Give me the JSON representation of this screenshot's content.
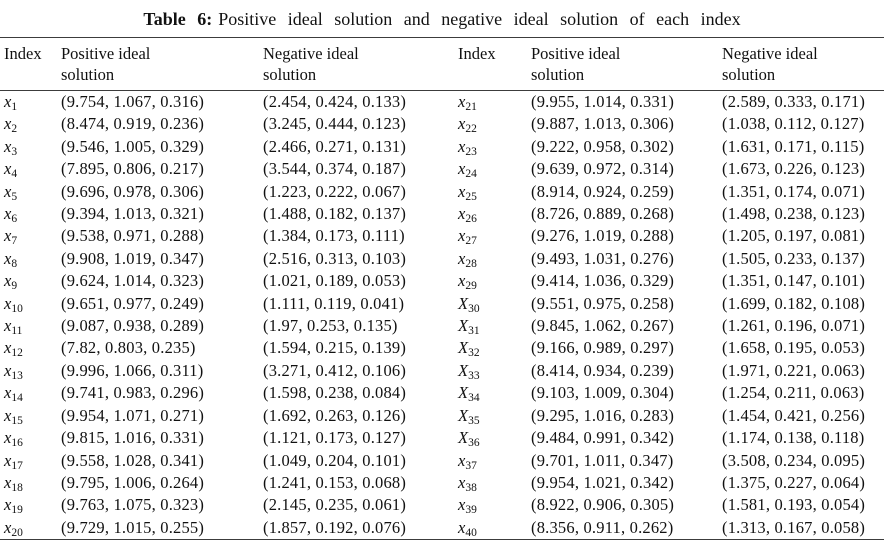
{
  "table": {
    "title_label": "Table 6:",
    "title_text": "Positive ideal solution and negative ideal solution of each index",
    "headers": [
      "Index",
      "Positive ideal solution",
      "Negative ideal solution",
      "Index",
      "Positive ideal solution",
      "Negative ideal solution"
    ]
  },
  "rows": [
    {
      "left": {
        "index_base": "x",
        "index_sub": "1",
        "positive": "(9.754, 1.067, 0.316)",
        "negative": "(2.454, 0.424, 0.133)"
      },
      "right": {
        "index_base": "x",
        "index_sub": "21",
        "positive": "(9.955, 1.014, 0.331)",
        "negative": "(2.589, 0.333, 0.171)"
      }
    },
    {
      "left": {
        "index_base": "x",
        "index_sub": "2",
        "positive": "(8.474, 0.919, 0.236)",
        "negative": "(3.245, 0.444, 0.123)"
      },
      "right": {
        "index_base": "x",
        "index_sub": "22",
        "positive": "(9.887, 1.013, 0.306)",
        "negative": "(1.038, 0.112, 0.127)"
      }
    },
    {
      "left": {
        "index_base": "x",
        "index_sub": "3",
        "positive": "(9.546, 1.005, 0.329)",
        "negative": "(2.466, 0.271, 0.131)"
      },
      "right": {
        "index_base": "x",
        "index_sub": "23",
        "positive": "(9.222, 0.958, 0.302)",
        "negative": "(1.631, 0.171, 0.115)"
      }
    },
    {
      "left": {
        "index_base": "x",
        "index_sub": "4",
        "positive": "(7.895, 0.806, 0.217)",
        "negative": "(3.544, 0.374, 0.187)"
      },
      "right": {
        "index_base": "x",
        "index_sub": "24",
        "positive": "(9.639, 0.972, 0.314)",
        "negative": "(1.673, 0.226, 0.123)"
      }
    },
    {
      "left": {
        "index_base": "x",
        "index_sub": "5",
        "positive": "(9.696, 0.978, 0.306)",
        "negative": "(1.223, 0.222, 0.067)"
      },
      "right": {
        "index_base": "x",
        "index_sub": "25",
        "positive": "(8.914, 0.924, 0.259)",
        "negative": "(1.351, 0.174, 0.071)"
      }
    },
    {
      "left": {
        "index_base": "x",
        "index_sub": "6",
        "positive": "(9.394, 1.013, 0.321)",
        "negative": "(1.488, 0.182, 0.137)"
      },
      "right": {
        "index_base": "x",
        "index_sub": "26",
        "positive": "(8.726, 0.889, 0.268)",
        "negative": "(1.498, 0.238, 0.123)"
      }
    },
    {
      "left": {
        "index_base": "x",
        "index_sub": "7",
        "positive": "(9.538, 0.971, 0.288)",
        "negative": "(1.384, 0.173, 0.111)"
      },
      "right": {
        "index_base": "x",
        "index_sub": "27",
        "positive": "(9.276, 1.019, 0.288)",
        "negative": "(1.205, 0.197, 0.081)"
      }
    },
    {
      "left": {
        "index_base": "x",
        "index_sub": "8",
        "positive": "(9.908, 1.019, 0.347)",
        "negative": "(2.516, 0.313, 0.103)"
      },
      "right": {
        "index_base": "x",
        "index_sub": "28",
        "positive": "(9.493, 1.031, 0.276)",
        "negative": "(1.505, 0.233, 0.137)"
      }
    },
    {
      "left": {
        "index_base": "x",
        "index_sub": "9",
        "positive": "(9.624, 1.014, 0.323)",
        "negative": "(1.021, 0.189, 0.053)"
      },
      "right": {
        "index_base": "x",
        "index_sub": "29",
        "positive": "(9.414, 1.036, 0.329)",
        "negative": "(1.351, 0.147, 0.101)"
      }
    },
    {
      "left": {
        "index_base": "x",
        "index_sub": "10",
        "positive": "(9.651, 0.977, 0.249)",
        "negative": "(1.111, 0.119, 0.041)"
      },
      "right": {
        "index_base": "X",
        "index_sub": "30",
        "positive": "(9.551, 0.975, 0.258)",
        "negative": "(1.699, 0.182, 0.108)"
      }
    },
    {
      "left": {
        "index_base": "x",
        "index_sub": "11",
        "positive": "(9.087, 0.938, 0.289)",
        "negative": "(1.97, 0.253, 0.135)"
      },
      "right": {
        "index_base": "X",
        "index_sub": "31",
        "positive": "(9.845, 1.062, 0.267)",
        "negative": "(1.261, 0.196, 0.071)"
      }
    },
    {
      "left": {
        "index_base": "x",
        "index_sub": "12",
        "positive": "(7.82, 0.803, 0.235)",
        "negative": "(1.594, 0.215, 0.139)"
      },
      "right": {
        "index_base": "X",
        "index_sub": "32",
        "positive": "(9.166, 0.989, 0.297)",
        "negative": "(1.658, 0.195, 0.053)"
      }
    },
    {
      "left": {
        "index_base": "x",
        "index_sub": "13",
        "positive": "(9.996, 1.066, 0.311)",
        "negative": "(3.271, 0.412, 0.106)"
      },
      "right": {
        "index_base": "X",
        "index_sub": "33",
        "positive": "(8.414, 0.934, 0.239)",
        "negative": "(1.971, 0.221, 0.063)"
      }
    },
    {
      "left": {
        "index_base": "x",
        "index_sub": "14",
        "positive": "(9.741, 0.983, 0.296)",
        "negative": "(1.598, 0.238, 0.084)"
      },
      "right": {
        "index_base": "X",
        "index_sub": "34",
        "positive": "(9.103, 1.009, 0.304)",
        "negative": "(1.254, 0.211, 0.063)"
      }
    },
    {
      "left": {
        "index_base": "x",
        "index_sub": "15",
        "positive": "(9.954, 1.071, 0.271)",
        "negative": "(1.692, 0.263, 0.126)"
      },
      "right": {
        "index_base": "X",
        "index_sub": "35",
        "positive": "(9.295, 1.016, 0.283)",
        "negative": "(1.454, 0.421, 0.256)"
      }
    },
    {
      "left": {
        "index_base": "x",
        "index_sub": "16",
        "positive": "(9.815, 1.016, 0.331)",
        "negative": "(1.121, 0.173, 0.127)"
      },
      "right": {
        "index_base": "X",
        "index_sub": "36",
        "positive": "(9.484, 0.991, 0.342)",
        "negative": "(1.174, 0.138, 0.118)"
      }
    },
    {
      "left": {
        "index_base": "x",
        "index_sub": "17",
        "positive": "(9.558, 1.028, 0.341)",
        "negative": "(1.049, 0.204, 0.101)"
      },
      "right": {
        "index_base": "x",
        "index_sub": "37",
        "positive": "(9.701, 1.011, 0.347)",
        "negative": "(3.508, 0.234, 0.095)"
      }
    },
    {
      "left": {
        "index_base": "x",
        "index_sub": "18",
        "positive": "(9.795, 1.006, 0.264)",
        "negative": "(1.241, 0.153, 0.068)"
      },
      "right": {
        "index_base": "x",
        "index_sub": "38",
        "positive": "(9.954, 1.021, 0.342)",
        "negative": "(1.375, 0.227, 0.064)"
      }
    },
    {
      "left": {
        "index_base": "x",
        "index_sub": "19",
        "positive": "(9.763, 1.075, 0.323)",
        "negative": "(2.145, 0.235, 0.061)"
      },
      "right": {
        "index_base": "x",
        "index_sub": "39",
        "positive": "(8.922, 0.906, 0.305)",
        "negative": "(1.581, 0.193, 0.054)"
      }
    },
    {
      "left": {
        "index_base": "x",
        "index_sub": "20",
        "positive": "(9.729, 1.015, 0.255)",
        "negative": "(1.857, 0.192, 0.076)"
      },
      "right": {
        "index_base": "x",
        "index_sub": "40",
        "positive": "(8.356, 0.911, 0.262)",
        "negative": "(1.313, 0.167, 0.058)"
      }
    }
  ]
}
